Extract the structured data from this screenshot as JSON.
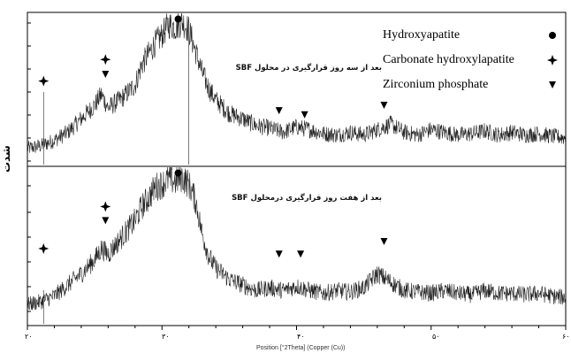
{
  "chart_data": {
    "type": "line",
    "xlabel": "Position [°2Theta] (Copper (Cu))",
    "ylabel": "شدت",
    "xlim": [
      20,
      60
    ],
    "x_tick_labels": [
      "۲۰",
      "۳۰",
      "۴۰",
      "۵۰",
      "۶۰"
    ],
    "panels": [
      {
        "caption": "بعد از سه روز قرارگیری در محلول SBF",
        "series": [
          {
            "x": [
              20,
              21,
              22,
              23,
              24,
              25,
              25.5,
              26,
              27,
              28,
              28.5,
              29,
              29.5,
              30,
              30.5,
              31,
              31.5,
              32,
              32.5,
              33,
              33.5,
              34,
              35,
              36,
              37,
              38,
              39,
              40,
              41,
              42,
              43,
              44,
              45,
              46,
              47,
              48,
              49,
              50,
              51,
              52,
              53,
              54,
              55,
              56,
              57,
              58,
              59,
              60
            ],
            "y": [
              8,
              10,
              14,
              20,
              30,
              40,
              48,
              38,
              45,
              55,
              70,
              78,
              86,
              92,
              100,
              98,
              102,
              96,
              80,
              64,
              52,
              44,
              34,
              30,
              25,
              23,
              20,
              24,
              22,
              19,
              18,
              20,
              18,
              22,
              26,
              20,
              18,
              22,
              20,
              18,
              19,
              21,
              18,
              20,
              18,
              19,
              17,
              16
            ]
          }
        ]
      },
      {
        "caption": "بعد از هفت روز قرارگیری درمحلول SBF",
        "series": [
          {
            "x": [
              20,
              21,
              22,
              23,
              24,
              25,
              25.5,
              26,
              27,
              28,
              28.5,
              29,
              29.5,
              30,
              30.5,
              31,
              31.5,
              32,
              32.5,
              33,
              33.5,
              34,
              35,
              36,
              37,
              38,
              39,
              40,
              41,
              42,
              43,
              44,
              45,
              46,
              47,
              48,
              49,
              50,
              51,
              52,
              53,
              54,
              55,
              56,
              57,
              58,
              59,
              60
            ],
            "y": [
              10,
              12,
              16,
              24,
              32,
              42,
              50,
              46,
              58,
              70,
              80,
              86,
              94,
              96,
              100,
              98,
              101,
              96,
              84,
              60,
              44,
              36,
              28,
              24,
              20,
              22,
              20,
              23,
              20,
              18,
              20,
              19,
              22,
              32,
              26,
              20,
              19,
              18,
              20,
              18,
              17,
              20,
              18,
              18,
              17,
              18,
              16,
              15
            ]
          }
        ]
      }
    ],
    "legend": {
      "placement": "top-right",
      "items": [
        {
          "label": "Hydroxyapatite",
          "marker": "circle"
        },
        {
          "label": "Carbonate hydroxylapatite",
          "marker": "star4"
        },
        {
          "label": "Zirconium phosphate",
          "marker": "triangle-down"
        }
      ]
    },
    "peak_markers": [
      {
        "panel": 0,
        "x": 21.2,
        "y": 58,
        "marker": "star4"
      },
      {
        "panel": 0,
        "x": 25.8,
        "y": 74,
        "marker": "star4"
      },
      {
        "panel": 0,
        "x": 25.8,
        "y": 63,
        "marker": "triangle-down"
      },
      {
        "panel": 0,
        "x": 31.2,
        "y": 104,
        "marker": "circle"
      },
      {
        "panel": 0,
        "x": 38.7,
        "y": 36,
        "marker": "triangle-down"
      },
      {
        "panel": 0,
        "x": 40.6,
        "y": 33,
        "marker": "triangle-down"
      },
      {
        "panel": 0,
        "x": 46.5,
        "y": 40,
        "marker": "triangle-down"
      },
      {
        "panel": 1,
        "x": 21.2,
        "y": 50,
        "marker": "star4"
      },
      {
        "panel": 1,
        "x": 25.8,
        "y": 80,
        "marker": "star4"
      },
      {
        "panel": 1,
        "x": 25.8,
        "y": 70,
        "marker": "triangle-down"
      },
      {
        "panel": 1,
        "x": 31.2,
        "y": 104,
        "marker": "circle"
      },
      {
        "panel": 1,
        "x": 38.7,
        "y": 46,
        "marker": "triangle-down"
      },
      {
        "panel": 1,
        "x": 40.3,
        "y": 46,
        "marker": "triangle-down"
      },
      {
        "panel": 1,
        "x": 46.5,
        "y": 55,
        "marker": "triangle-down"
      }
    ]
  }
}
